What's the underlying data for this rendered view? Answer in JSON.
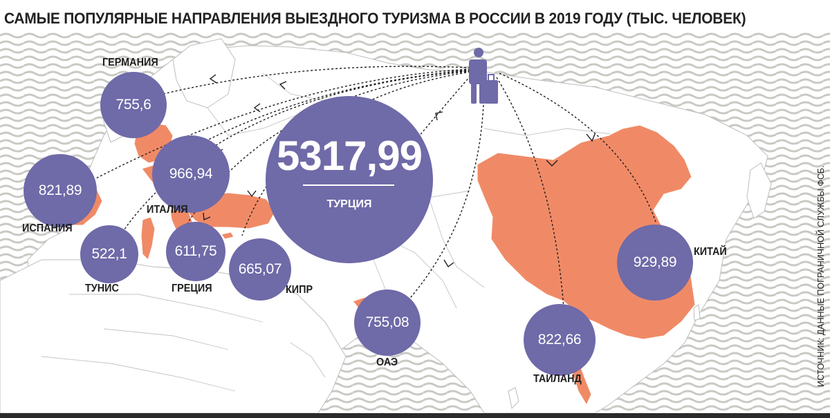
{
  "title": "САМЫЕ ПОПУЛЯРНЫЕ НАПРАВЛЕНИЯ ВЫЕЗДНОГО ТУРИЗМА В РОССИИ В 2019 ГОДУ (ТЫС. ЧЕЛОВЕК)",
  "source": "ИСТОЧНИК: ДАННЫЕ ПОГРАНИЧНОЙ СЛУЖБЫ ФСБ.",
  "colors": {
    "bubble": "#6f6aa8",
    "highlight_country": "#f08a66",
    "land": "#ffffff",
    "sea_stripes": "#c9c9c4",
    "borders": "#bdbdbd"
  },
  "origin_icon": "traveler-with-suitcase-icon",
  "destinations": [
    {
      "id": "turkey",
      "label": "ТУРЦИЯ",
      "value": "5317,99"
    },
    {
      "id": "italy",
      "label": "ИТАЛИЯ",
      "value": "966,94"
    },
    {
      "id": "china",
      "label": "КИТАЙ",
      "value": "929,89"
    },
    {
      "id": "thailand",
      "label": "ТАИЛАНД",
      "value": "822,66"
    },
    {
      "id": "spain",
      "label": "ИСПАНИЯ",
      "value": "821,89"
    },
    {
      "id": "germany",
      "label": "ГЕРМАНИЯ",
      "value": "755,6"
    },
    {
      "id": "uae",
      "label": "ОАЭ",
      "value": "755,08"
    },
    {
      "id": "cyprus",
      "label": "КИПР",
      "value": "665,07"
    },
    {
      "id": "greece",
      "label": "ГРЕЦИЯ",
      "value": "611,75"
    },
    {
      "id": "tunisia",
      "label": "ТУНИС",
      "value": "522,1"
    }
  ]
}
